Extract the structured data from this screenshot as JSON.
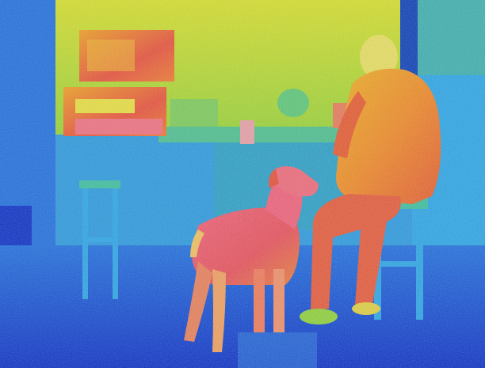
{
  "image": {
    "kind": "thermal-camera-photo",
    "subjects": [
      "man-seated-on-stool",
      "dog-standing",
      "kitchen-counter",
      "stools",
      "hanging-cabinet",
      "microwave"
    ],
    "palette": {
      "cold_deep": "#0a2fc8",
      "cold": "#1e6fe0",
      "cool": "#2aa6e8",
      "mid": "#3cc0a0",
      "warm_green": "#8fd23a",
      "yellow": "#e6e020",
      "orange": "#f0a020",
      "hot": "#e8503a",
      "hottest": "#f04a6a"
    }
  }
}
